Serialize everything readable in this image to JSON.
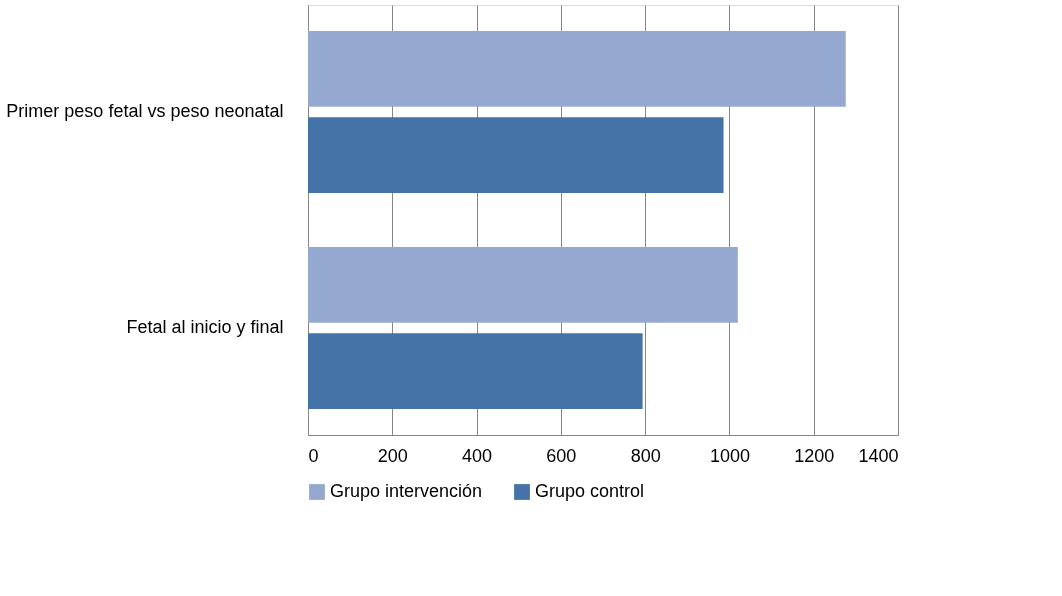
{
  "chart_data": {
    "type": "bar",
    "orientation": "horizontal",
    "categories": [
      "Primer peso fetal vs peso neonatal",
      "Fetal al inicio y final"
    ],
    "series": [
      {
        "name": "Grupo intervención",
        "color": "#95a9d0",
        "values": [
          1276,
          1020
        ]
      },
      {
        "name": "Grupo control",
        "color": "#4572a7",
        "values": [
          986,
          794
        ]
      }
    ],
    "xlim": [
      0,
      1400
    ],
    "xticks": [
      0,
      200,
      400,
      600,
      800,
      1000,
      1200,
      1400
    ],
    "grid": "x",
    "legend": "bottom"
  }
}
